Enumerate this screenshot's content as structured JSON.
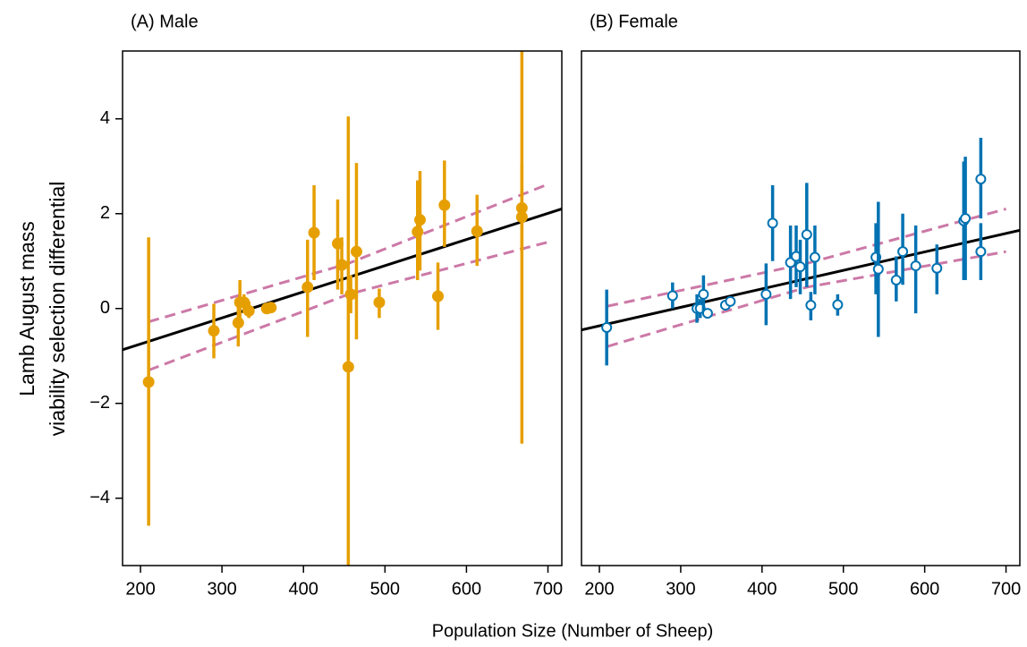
{
  "xlabel": "Population Size (Number of Sheep)",
  "ylabel": [
    "Lamb August mass",
    "viability selection differential"
  ],
  "chart_data": [
    {
      "type": "scatter",
      "title": "(A) Male",
      "color": "#E69F00",
      "marker": "filled",
      "xlim": [
        178,
        717
      ],
      "ylim": [
        -5.42,
        5.43
      ],
      "xticks": [
        200,
        300,
        400,
        500,
        600,
        700
      ],
      "yticks": [
        {
          "value": -4,
          "label": "−4"
        },
        {
          "value": -2,
          "label": "−2"
        },
        0,
        2,
        4
      ],
      "x": [
        210,
        290,
        320,
        322,
        327,
        333,
        355,
        360,
        405,
        413,
        442,
        447,
        455,
        458,
        465,
        493,
        540,
        543,
        565,
        573,
        613,
        668,
        668
      ],
      "values": [
        -1.55,
        -0.47,
        -0.3,
        0.13,
        0.13,
        -0.05,
        0,
        0.02,
        0.45,
        1.6,
        1.37,
        0.92,
        -1.23,
        0.3,
        1.2,
        0.13,
        1.62,
        1.87,
        0.26,
        2.18,
        1.63,
        2.12,
        1.93
      ],
      "lower": [
        -4.58,
        -1.05,
        -0.8,
        -0.2,
        -0.1,
        -0.2,
        -0.08,
        -0.05,
        -0.6,
        0.6,
        0.4,
        0.3,
        -6.0,
        -0.1,
        -0.65,
        -0.2,
        0.6,
        0.8,
        -0.45,
        1.3,
        0.9,
        1.2,
        -2.85
      ],
      "upper": [
        1.5,
        0.1,
        0.2,
        0.6,
        0.3,
        0.15,
        0.08,
        0.08,
        1.45,
        2.6,
        2.3,
        1.5,
        4.05,
        0.7,
        3.07,
        0.42,
        2.7,
        2.9,
        0.97,
        3.12,
        2.4,
        6.0,
        3.05
      ],
      "fit": {
        "color": "#000000",
        "x": [
          178,
          717
        ],
        "values": [
          -0.87,
          2.1
        ]
      },
      "band": {
        "color": "#CC79A7",
        "x": [
          210,
          455,
          700
        ],
        "upper": [
          -0.28,
          0.95,
          2.62
        ],
        "lower": [
          -1.3,
          0.3,
          1.4
        ]
      }
    },
    {
      "type": "scatter",
      "title": "(B) Female",
      "color": "#0072B2",
      "marker": "open",
      "xlim": [
        178,
        717
      ],
      "ylim": [
        -5.42,
        5.43
      ],
      "xticks": [
        200,
        300,
        400,
        500,
        600,
        700
      ],
      "x": [
        209,
        290,
        320,
        324,
        328,
        333,
        355,
        361,
        405,
        413,
        435,
        442,
        447,
        455,
        460,
        465,
        493,
        540,
        543,
        565,
        573,
        589,
        615,
        648,
        650,
        669,
        669
      ],
      "values": [
        -0.4,
        0.27,
        0,
        0,
        0.3,
        -0.1,
        0.07,
        0.15,
        0.3,
        1.8,
        0.97,
        1.1,
        0.88,
        1.56,
        0.07,
        1.08,
        0.08,
        1.08,
        0.83,
        0.6,
        1.2,
        0.9,
        0.85,
        1.85,
        1.9,
        2.73,
        1.2
      ],
      "lower": [
        -1.2,
        0,
        -0.3,
        -0.2,
        -0.1,
        -0.2,
        0,
        0.05,
        -0.35,
        1.0,
        0.2,
        0.45,
        0.3,
        0.45,
        -0.25,
        0.3,
        -0.15,
        0.3,
        -0.6,
        0.15,
        0.5,
        -0.1,
        0.3,
        0.6,
        0.6,
        1.9,
        0.6
      ],
      "upper": [
        0.4,
        0.55,
        0.3,
        0.2,
        0.7,
        0,
        0.15,
        0.25,
        0.95,
        2.6,
        1.75,
        1.75,
        1.45,
        2.65,
        0.35,
        1.75,
        0.3,
        1.8,
        2.25,
        1.1,
        2.0,
        1.75,
        1.35,
        3.1,
        3.2,
        3.6,
        1.8
      ],
      "fit": {
        "color": "#000000",
        "x": [
          178,
          717
        ],
        "values": [
          -0.45,
          1.65
        ]
      },
      "band": {
        "color": "#CC79A7",
        "x": [
          210,
          455,
          700
        ],
        "upper": [
          0.05,
          0.95,
          2.1
        ],
        "lower": [
          -0.8,
          0.45,
          1.2
        ]
      }
    }
  ]
}
